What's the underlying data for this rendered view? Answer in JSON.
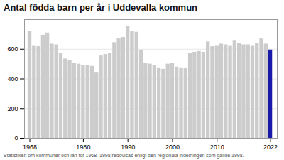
{
  "chart_data": {
    "type": "bar",
    "title": "Antal födda barn per år i Uddevalla kommun",
    "subtitle": "Statistiken om kommuner och län för 1968–1998 redovisas enligt den regionala indelningen som gällde 1998.",
    "x": [
      1968,
      1969,
      1970,
      1971,
      1972,
      1973,
      1974,
      1975,
      1976,
      1977,
      1978,
      1979,
      1980,
      1981,
      1982,
      1983,
      1984,
      1985,
      1986,
      1987,
      1988,
      1989,
      1990,
      1991,
      1992,
      1993,
      1994,
      1995,
      1996,
      1997,
      1998,
      1999,
      2000,
      2001,
      2002,
      2003,
      2004,
      2005,
      2006,
      2007,
      2008,
      2009,
      2010,
      2011,
      2012,
      2013,
      2014,
      2015,
      2016,
      2017,
      2018,
      2019,
      2020,
      2021,
      2022
    ],
    "values": [
      720,
      625,
      620,
      695,
      710,
      635,
      630,
      575,
      535,
      525,
      505,
      500,
      490,
      490,
      485,
      445,
      555,
      565,
      575,
      645,
      670,
      680,
      755,
      720,
      715,
      595,
      505,
      500,
      490,
      475,
      465,
      500,
      505,
      480,
      475,
      470,
      575,
      580,
      585,
      580,
      650,
      620,
      625,
      635,
      630,
      625,
      660,
      640,
      630,
      630,
      625,
      640,
      670,
      635,
      595
    ],
    "colors": [
      "#cccccc",
      "#cccccc",
      "#cccccc",
      "#cccccc",
      "#cccccc",
      "#cccccc",
      "#cccccc",
      "#cccccc",
      "#cccccc",
      "#cccccc",
      "#cccccc",
      "#cccccc",
      "#cccccc",
      "#cccccc",
      "#cccccc",
      "#cccccc",
      "#cccccc",
      "#cccccc",
      "#cccccc",
      "#cccccc",
      "#cccccc",
      "#cccccc",
      "#cccccc",
      "#cccccc",
      "#cccccc",
      "#cccccc",
      "#cccccc",
      "#cccccc",
      "#cccccc",
      "#cccccc",
      "#cccccc",
      "#cccccc",
      "#cccccc",
      "#cccccc",
      "#cccccc",
      "#cccccc",
      "#cccccc",
      "#cccccc",
      "#cccccc",
      "#cccccc",
      "#cccccc",
      "#cccccc",
      "#cccccc",
      "#cccccc",
      "#cccccc",
      "#cccccc",
      "#cccccc",
      "#cccccc",
      "#cccccc",
      "#cccccc",
      "#cccccc",
      "#cccccc",
      "#cccccc",
      "#cccccc",
      "#1a1aaa"
    ],
    "xlim": [
      1966.8,
      2023.5
    ],
    "xticks": [
      1968,
      1980,
      1990,
      2000,
      2010,
      2022
    ],
    "ylim": [
      0,
      800
    ],
    "yticks": [
      0,
      200,
      400,
      600
    ],
    "grid": true
  }
}
